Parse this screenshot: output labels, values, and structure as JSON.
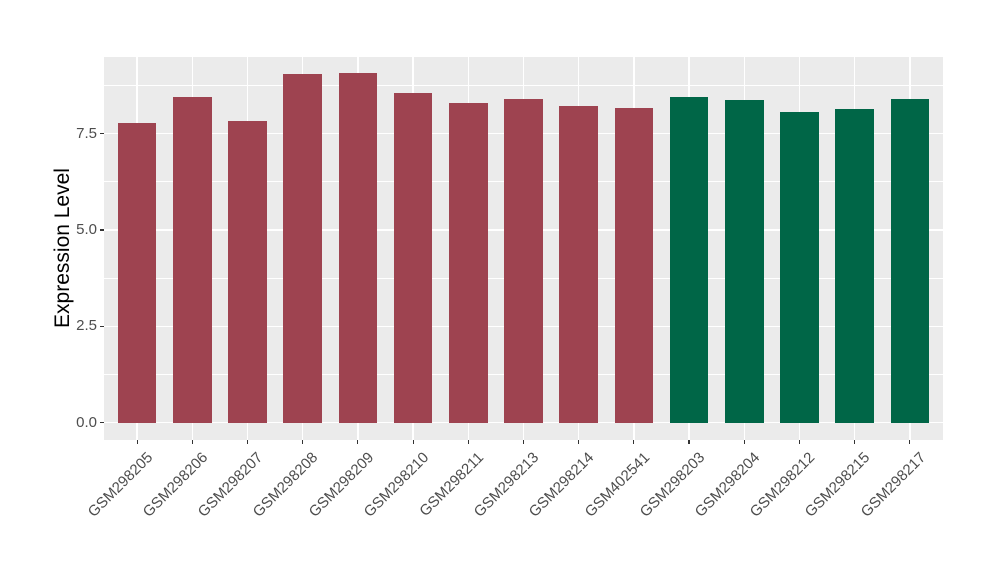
{
  "figure": {
    "background": "#FFFFFF",
    "panel_background": "#EBEBEB",
    "grid_color": "#FFFFFF",
    "tick_mark_color": "#333333",
    "tick_label_color": "#4D4D4D",
    "axis_title_color": "#000000",
    "group_colors": {
      "red_group": "#9E4350",
      "green_group": "#006647"
    }
  },
  "chart_data": {
    "type": "bar",
    "title": "",
    "xlabel": "",
    "ylabel": "Expression Level",
    "categories": [
      "GSM298205",
      "GSM298206",
      "GSM298207",
      "GSM298208",
      "GSM298209",
      "GSM298210",
      "GSM298211",
      "GSM298213",
      "GSM298214",
      "GSM402541",
      "GSM298203",
      "GSM298204",
      "GSM298212",
      "GSM298215",
      "GSM298217"
    ],
    "values": [
      7.79,
      8.45,
      7.84,
      9.05,
      9.08,
      8.56,
      8.29,
      8.41,
      8.22,
      8.16,
      8.44,
      8.37,
      8.07,
      8.15,
      8.39
    ],
    "bar_colors": [
      "#9E4350",
      "#9E4350",
      "#9E4350",
      "#9E4350",
      "#9E4350",
      "#9E4350",
      "#9E4350",
      "#9E4350",
      "#9E4350",
      "#9E4350",
      "#006647",
      "#006647",
      "#006647",
      "#006647",
      "#006647"
    ],
    "y_ticks_major": [
      0.0,
      2.5,
      5.0,
      7.5
    ],
    "y_tick_labels": [
      "0.0",
      "2.5",
      "5.0",
      "7.5"
    ],
    "y_ticks_minor": [
      1.25,
      3.75,
      6.25,
      8.75
    ],
    "ylim": [
      -0.45,
      9.49
    ],
    "grid": true,
    "legend": false,
    "x_label_rotation_deg": 45,
    "bar_relative_width": 0.7
  }
}
